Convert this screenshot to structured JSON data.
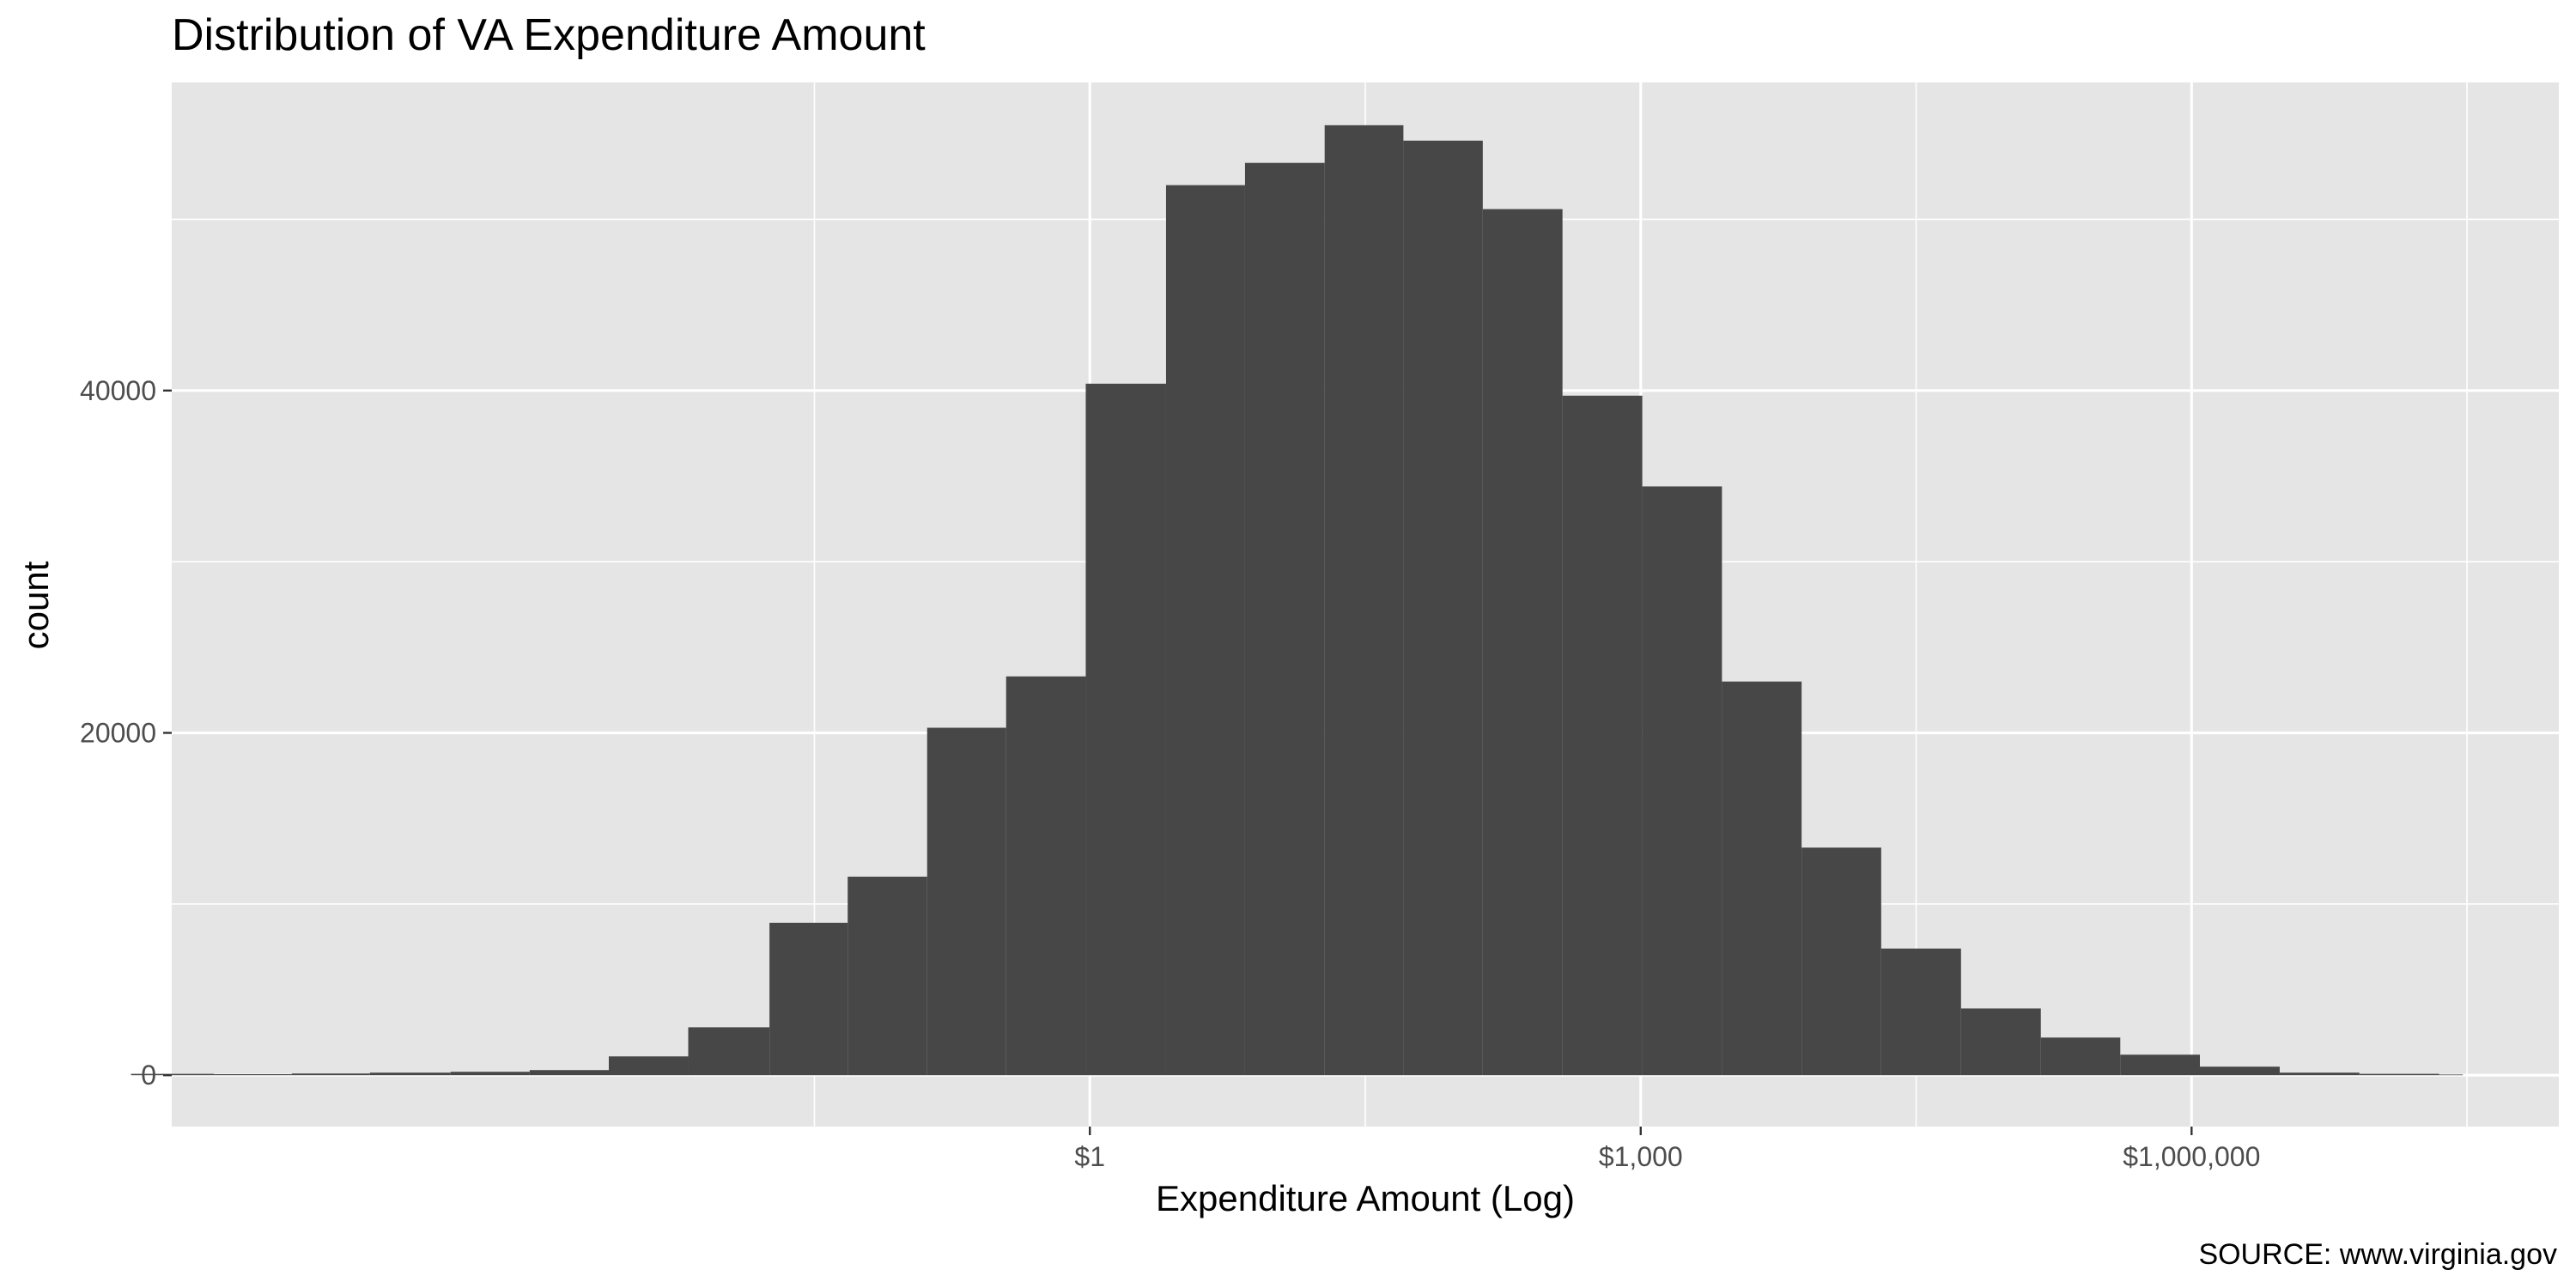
{
  "chart_data": {
    "type": "bar",
    "title": "Distribution of VA Expenditure Amount",
    "xlabel": "Expenditure Amount (Log)",
    "ylabel": "count",
    "caption": "SOURCE: www.virginia.gov",
    "x_scale": "log10",
    "x_range": [
      1e-05,
      100000000.0
    ],
    "xlim": [
      6e-06,
      30000000.0
    ],
    "x_ticks": [
      {
        "value": 1,
        "label": "$1"
      },
      {
        "value": 1000,
        "label": "$1,000"
      },
      {
        "value": 1000000,
        "label": "$1,000,000"
      }
    ],
    "ylim": [
      0,
      55000
    ],
    "y_range": [
      -3000,
      58000
    ],
    "y_ticks": [
      {
        "value": 0,
        "label": "0"
      },
      {
        "value": 20000,
        "label": "20000"
      },
      {
        "value": 40000,
        "label": "40000"
      }
    ],
    "grid": true,
    "bins": [
      {
        "x_start": 6e-06,
        "x_end": 1.7e-05,
        "count": 80
      },
      {
        "x_start": 1.7e-05,
        "x_end": 4.5e-05,
        "count": 60
      },
      {
        "x_start": 4.5e-05,
        "x_end": 0.00012,
        "count": 100
      },
      {
        "x_start": 0.00012,
        "x_end": 0.00033,
        "count": 150
      },
      {
        "x_start": 0.00033,
        "x_end": 0.00089,
        "count": 200
      },
      {
        "x_start": 0.00089,
        "x_end": 0.0024,
        "count": 300
      },
      {
        "x_start": 0.0024,
        "x_end": 0.0065,
        "count": 1100
      },
      {
        "x_start": 0.0065,
        "x_end": 0.018,
        "count": 2800
      },
      {
        "x_start": 0.018,
        "x_end": 0.048,
        "count": 8900
      },
      {
        "x_start": 0.048,
        "x_end": 0.13,
        "count": 11600
      },
      {
        "x_start": 0.13,
        "x_end": 0.35,
        "count": 20300
      },
      {
        "x_start": 0.35,
        "x_end": 0.95,
        "count": 23300
      },
      {
        "x_start": 0.95,
        "x_end": 2.6,
        "count": 40400
      },
      {
        "x_start": 2.6,
        "x_end": 7.0,
        "count": 52000
      },
      {
        "x_start": 7.0,
        "x_end": 19,
        "count": 53300
      },
      {
        "x_start": 19,
        "x_end": 51,
        "count": 55500
      },
      {
        "x_start": 51,
        "x_end": 138,
        "count": 54600
      },
      {
        "x_start": 138,
        "x_end": 375,
        "count": 50600
      },
      {
        "x_start": 375,
        "x_end": 1020,
        "count": 39700
      },
      {
        "x_start": 1020,
        "x_end": 2770,
        "count": 34400
      },
      {
        "x_start": 2770,
        "x_end": 7520,
        "count": 23000
      },
      {
        "x_start": 7520,
        "x_end": 20400,
        "count": 13300
      },
      {
        "x_start": 20400,
        "x_end": 55500,
        "count": 7400
      },
      {
        "x_start": 55500,
        "x_end": 151000,
        "count": 3900
      },
      {
        "x_start": 151000,
        "x_end": 409000,
        "count": 2200
      },
      {
        "x_start": 409000,
        "x_end": 1110000,
        "count": 1200
      },
      {
        "x_start": 1110000,
        "x_end": 3020000,
        "count": 500
      },
      {
        "x_start": 3020000,
        "x_end": 8200000,
        "count": 150
      },
      {
        "x_start": 8200000,
        "x_end": 22300000,
        "count": 80
      },
      {
        "x_start": 22300000,
        "x_end": 30000000,
        "count": 40
      }
    ],
    "colors": {
      "panel_background": "#e5e5e5",
      "grid_major": "#ffffff",
      "bar_fill": "#474747",
      "tick_text": "#4d4d4d",
      "text": "#000000"
    }
  }
}
